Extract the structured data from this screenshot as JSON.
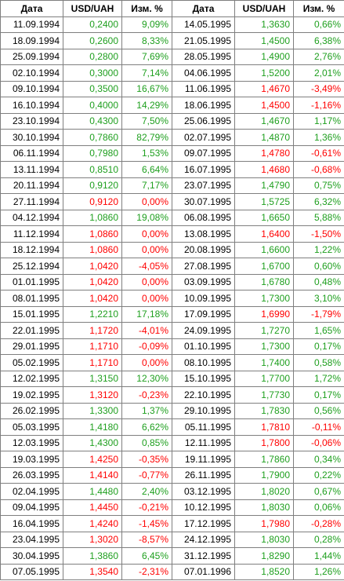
{
  "headers": [
    "Дата",
    "USD/UAH",
    "Изм. %",
    "Дата",
    "USD/UAH",
    "Изм. %"
  ],
  "colors": {
    "positive": "#1e9f1e",
    "negative": "#ff0000"
  },
  "rows": [
    [
      [
        "11.09.1994",
        "0,2400",
        "9,09%",
        "up"
      ],
      [
        "14.05.1995",
        "1,3630",
        "0,66%",
        "up"
      ]
    ],
    [
      [
        "18.09.1994",
        "0,2600",
        "8,33%",
        "up"
      ],
      [
        "21.05.1995",
        "1,4500",
        "6,38%",
        "up"
      ]
    ],
    [
      [
        "25.09.1994",
        "0,2800",
        "7,69%",
        "up"
      ],
      [
        "28.05.1995",
        "1,4900",
        "2,76%",
        "up"
      ]
    ],
    [
      [
        "02.10.1994",
        "0,3000",
        "7,14%",
        "up"
      ],
      [
        "04.06.1995",
        "1,5200",
        "2,01%",
        "up"
      ]
    ],
    [
      [
        "09.10.1994",
        "0,3500",
        "16,67%",
        "up"
      ],
      [
        "11.06.1995",
        "1,4670",
        "-3,49%",
        "down"
      ]
    ],
    [
      [
        "16.10.1994",
        "0,4000",
        "14,29%",
        "up"
      ],
      [
        "18.06.1995",
        "1,4500",
        "-1,16%",
        "down"
      ]
    ],
    [
      [
        "23.10.1994",
        "0,4300",
        "7,50%",
        "up"
      ],
      [
        "25.06.1995",
        "1,4670",
        "1,17%",
        "up"
      ]
    ],
    [
      [
        "30.10.1994",
        "0,7860",
        "82,79%",
        "up"
      ],
      [
        "02.07.1995",
        "1,4870",
        "1,36%",
        "up"
      ]
    ],
    [
      [
        "06.11.1994",
        "0,7980",
        "1,53%",
        "up"
      ],
      [
        "09.07.1995",
        "1,4780",
        "-0,61%",
        "down"
      ]
    ],
    [
      [
        "13.11.1994",
        "0,8510",
        "6,64%",
        "up"
      ],
      [
        "16.07.1995",
        "1,4680",
        "-0,68%",
        "down"
      ]
    ],
    [
      [
        "20.11.1994",
        "0,9120",
        "7,17%",
        "up"
      ],
      [
        "23.07.1995",
        "1,4790",
        "0,75%",
        "up"
      ]
    ],
    [
      [
        "27.11.1994",
        "0,9120",
        "0,00%",
        "down"
      ],
      [
        "30.07.1995",
        "1,5725",
        "6,32%",
        "up"
      ]
    ],
    [
      [
        "04.12.1994",
        "1,0860",
        "19,08%",
        "up"
      ],
      [
        "06.08.1995",
        "1,6650",
        "5,88%",
        "up"
      ]
    ],
    [
      [
        "11.12.1994",
        "1,0860",
        "0,00%",
        "down"
      ],
      [
        "13.08.1995",
        "1,6400",
        "-1,50%",
        "down"
      ]
    ],
    [
      [
        "18.12.1994",
        "1,0860",
        "0,00%",
        "down"
      ],
      [
        "20.08.1995",
        "1,6600",
        "1,22%",
        "up"
      ]
    ],
    [
      [
        "25.12.1994",
        "1,0420",
        "-4,05%",
        "down"
      ],
      [
        "27.08.1995",
        "1,6700",
        "0,60%",
        "up"
      ]
    ],
    [
      [
        "01.01.1995",
        "1,0420",
        "0,00%",
        "down"
      ],
      [
        "03.09.1995",
        "1,6780",
        "0,48%",
        "up"
      ]
    ],
    [
      [
        "08.01.1995",
        "1,0420",
        "0,00%",
        "down"
      ],
      [
        "10.09.1995",
        "1,7300",
        "3,10%",
        "up"
      ]
    ],
    [
      [
        "15.01.1995",
        "1,2210",
        "17,18%",
        "up"
      ],
      [
        "17.09.1995",
        "1,6990",
        "-1,79%",
        "down"
      ]
    ],
    [
      [
        "22.01.1995",
        "1,1720",
        "-4,01%",
        "down"
      ],
      [
        "24.09.1995",
        "1,7270",
        "1,65%",
        "up"
      ]
    ],
    [
      [
        "29.01.1995",
        "1,1710",
        "-0,09%",
        "down"
      ],
      [
        "01.10.1995",
        "1,7300",
        "0,17%",
        "up"
      ]
    ],
    [
      [
        "05.02.1995",
        "1,1710",
        "0,00%",
        "down"
      ],
      [
        "08.10.1995",
        "1,7400",
        "0,58%",
        "up"
      ]
    ],
    [
      [
        "12.02.1995",
        "1,3150",
        "12,30%",
        "up"
      ],
      [
        "15.10.1995",
        "1,7700",
        "1,72%",
        "up"
      ]
    ],
    [
      [
        "19.02.1995",
        "1,3120",
        "-0,23%",
        "down"
      ],
      [
        "22.10.1995",
        "1,7730",
        "0,17%",
        "up"
      ]
    ],
    [
      [
        "26.02.1995",
        "1,3300",
        "1,37%",
        "up"
      ],
      [
        "29.10.1995",
        "1,7830",
        "0,56%",
        "up"
      ]
    ],
    [
      [
        "05.03.1995",
        "1,4180",
        "6,62%",
        "up"
      ],
      [
        "05.11.1995",
        "1,7810",
        "-0,11%",
        "down"
      ]
    ],
    [
      [
        "12.03.1995",
        "1,4300",
        "0,85%",
        "up"
      ],
      [
        "12.11.1995",
        "1,7800",
        "-0,06%",
        "down"
      ]
    ],
    [
      [
        "19.03.1995",
        "1,4250",
        "-0,35%",
        "down"
      ],
      [
        "19.11.1995",
        "1,7860",
        "0,34%",
        "up"
      ]
    ],
    [
      [
        "26.03.1995",
        "1,4140",
        "-0,77%",
        "down"
      ],
      [
        "26.11.1995",
        "1,7900",
        "0,22%",
        "up"
      ]
    ],
    [
      [
        "02.04.1995",
        "1,4480",
        "2,40%",
        "up"
      ],
      [
        "03.12.1995",
        "1,8020",
        "0,67%",
        "up"
      ]
    ],
    [
      [
        "09.04.1995",
        "1,4450",
        "-0,21%",
        "down"
      ],
      [
        "10.12.1995",
        "1,8030",
        "0,06%",
        "up"
      ]
    ],
    [
      [
        "16.04.1995",
        "1,4240",
        "-1,45%",
        "down"
      ],
      [
        "17.12.1995",
        "1,7980",
        "-0,28%",
        "down"
      ]
    ],
    [
      [
        "23.04.1995",
        "1,3020",
        "-8,57%",
        "down"
      ],
      [
        "24.12.1995",
        "1,8030",
        "0,28%",
        "up"
      ]
    ],
    [
      [
        "30.04.1995",
        "1,3860",
        "6,45%",
        "up"
      ],
      [
        "31.12.1995",
        "1,8290",
        "1,44%",
        "up"
      ]
    ],
    [
      [
        "07.05.1995",
        "1,3540",
        "-2,31%",
        "down"
      ],
      [
        "07.01.1996",
        "1,8520",
        "1,26%",
        "up"
      ]
    ]
  ]
}
